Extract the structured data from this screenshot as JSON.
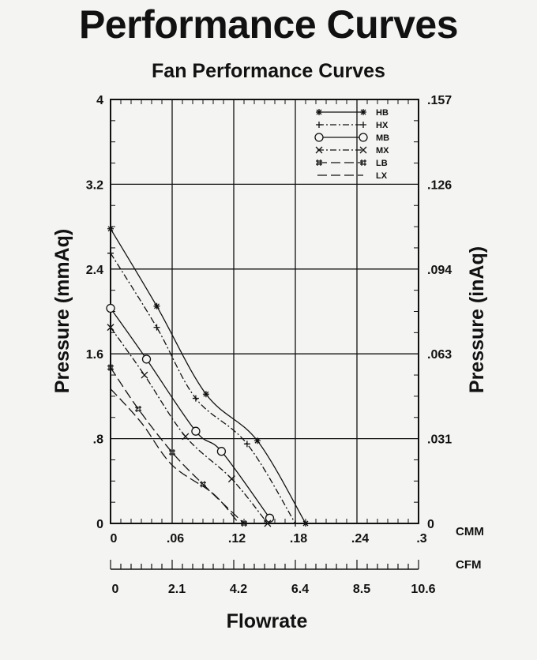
{
  "page": {
    "title": "Performance Curves"
  },
  "chart_data": {
    "type": "line",
    "title": "Fan Performance Curves",
    "xlabel": "Flowrate",
    "ylabel_left": "Pressure   (mmAq)",
    "ylabel_right": "Pressure  (inAq)",
    "x_unit_primary": "CMM",
    "x_unit_secondary": "CFM",
    "xlim": [
      0,
      0.3
    ],
    "ylim": [
      0,
      4
    ],
    "grid": true,
    "legend_position": "top-right",
    "x_ticks": [
      {
        "value": 0,
        "label": "0"
      },
      {
        "value": 0.06,
        "label": ".06"
      },
      {
        "value": 0.12,
        "label": ".12"
      },
      {
        "value": 0.18,
        "label": ".18"
      },
      {
        "value": 0.24,
        "label": ".24"
      },
      {
        "value": 0.3,
        "label": ".3"
      }
    ],
    "cfm_ticks": [
      {
        "value": 0,
        "label": "0"
      },
      {
        "value": 0.06,
        "label": "2.1"
      },
      {
        "value": 0.12,
        "label": "4.2"
      },
      {
        "value": 0.18,
        "label": "6.4"
      },
      {
        "value": 0.24,
        "label": "8.5"
      },
      {
        "value": 0.3,
        "label": "10.6"
      }
    ],
    "y_ticks_left": [
      {
        "value": 0,
        "label": "0"
      },
      {
        "value": 0.8,
        "label": ".8"
      },
      {
        "value": 1.6,
        "label": "1.6"
      },
      {
        "value": 2.4,
        "label": "2.4"
      },
      {
        "value": 3.2,
        "label": "3.2"
      },
      {
        "value": 4,
        "label": "4"
      }
    ],
    "y_ticks_right": [
      {
        "value": 0,
        "label": "0"
      },
      {
        "value": 0.8,
        "label": ".031"
      },
      {
        "value": 1.6,
        "label": ".063"
      },
      {
        "value": 2.4,
        "label": ".094"
      },
      {
        "value": 3.2,
        "label": ".126"
      },
      {
        "value": 4,
        "label": ".157"
      }
    ],
    "series": [
      {
        "name": "HB",
        "marker": "star",
        "dash": "",
        "x": [
          0,
          0.045,
          0.093,
          0.143,
          0.19
        ],
        "y": [
          2.78,
          2.05,
          1.22,
          0.78,
          0
        ]
      },
      {
        "name": "HX",
        "marker": "plus",
        "dash": "8 3 2 3",
        "x": [
          0,
          0.045,
          0.083,
          0.133,
          0.18
        ],
        "y": [
          2.55,
          1.85,
          1.18,
          0.75,
          0
        ]
      },
      {
        "name": "MB",
        "marker": "circle",
        "dash": "",
        "x": [
          0,
          0.035,
          0.083,
          0.108,
          0.155
        ],
        "y": [
          2.03,
          1.55,
          0.87,
          0.68,
          0.05
        ]
      },
      {
        "name": "MX",
        "marker": "x",
        "dash": "8 3 2 3",
        "x": [
          0,
          0.033,
          0.073,
          0.118,
          0.153
        ],
        "y": [
          1.85,
          1.4,
          0.82,
          0.42,
          0
        ]
      },
      {
        "name": "LB",
        "marker": "hash",
        "dash": "12 5",
        "x": [
          0,
          0.027,
          0.06,
          0.09,
          0.13
        ],
        "y": [
          1.47,
          1.08,
          0.67,
          0.37,
          0
        ]
      },
      {
        "name": "LX",
        "marker": "none",
        "dash": "12 5",
        "x": [
          0,
          0.03,
          0.06,
          0.1,
          0.125
        ],
        "y": [
          1.27,
          0.95,
          0.55,
          0.28,
          0
        ]
      }
    ]
  }
}
